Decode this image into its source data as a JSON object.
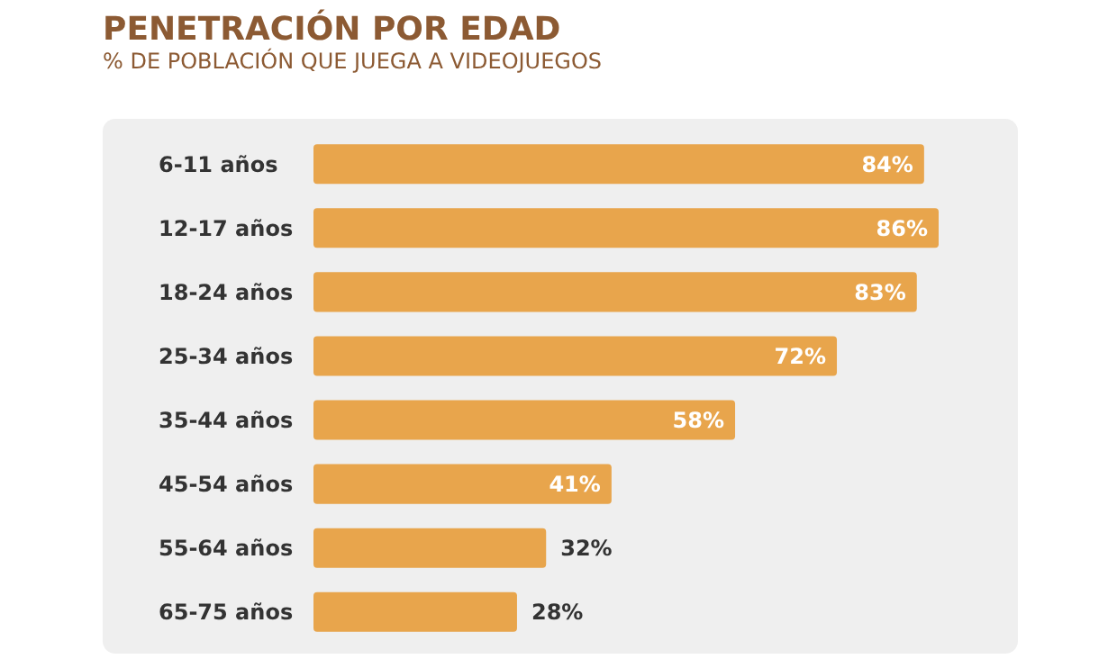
{
  "chart_data": {
    "type": "bar",
    "orientation": "horizontal",
    "title": "PENETRACIÓN POR EDAD",
    "subtitle": "% DE POBLACIÓN QUE JUEGA A VIDEOJUEGOS",
    "categories": [
      "6-11 años",
      "12-17 años",
      "18-24 años",
      "25-34 años",
      "35-44 años",
      "45-54 años",
      "55-64 años",
      "65-75 años"
    ],
    "values": [
      84,
      86,
      83,
      72,
      58,
      41,
      32,
      28
    ],
    "value_labels": [
      "84%",
      "86%",
      "83%",
      "72%",
      "58%",
      "41%",
      "32%",
      "28%"
    ],
    "color": "#e8a54c"
  }
}
